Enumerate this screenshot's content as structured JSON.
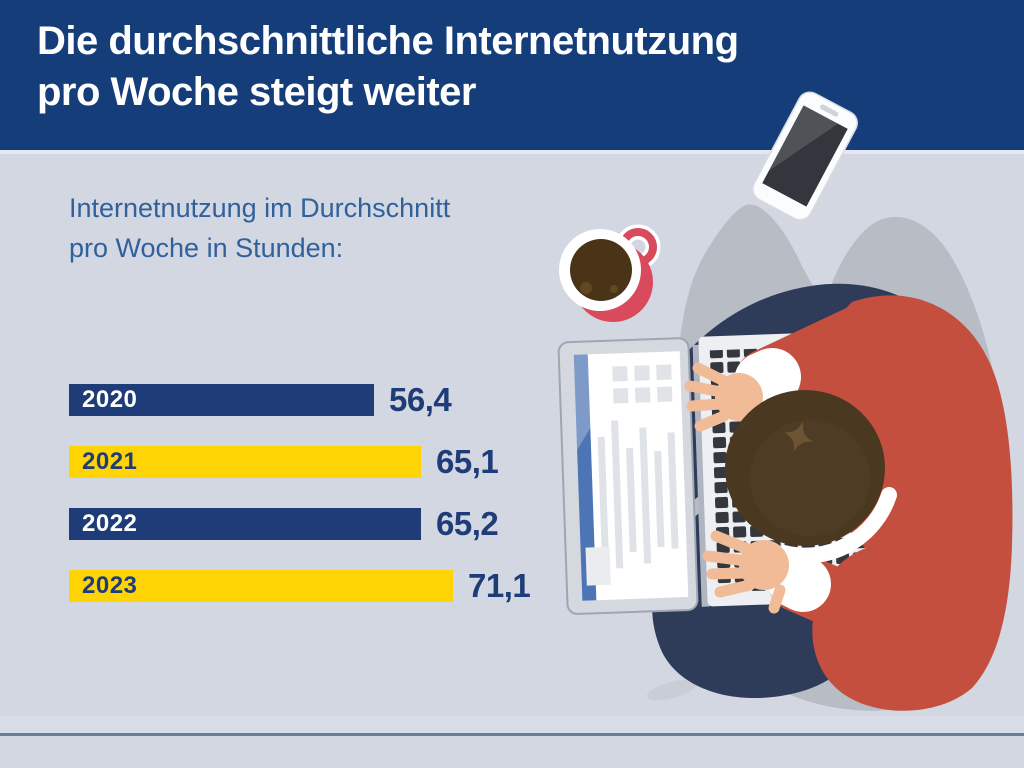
{
  "header": {
    "title_line1": "Die durchschnittliche Internetnutzung",
    "title_line2": "pro Woche steigt weiter"
  },
  "chart": {
    "subtitle_line1": "Internetnutzung im Durchschnitt",
    "subtitle_line2": "pro Woche in Stunden:"
  },
  "chart_data": {
    "type": "bar",
    "orientation": "horizontal",
    "title": "Internetnutzung im Durchschnitt pro Woche in Stunden:",
    "categories": [
      "2020",
      "2021",
      "2022",
      "2023"
    ],
    "values": [
      56.4,
      65.1,
      65.2,
      71.1
    ],
    "value_labels": [
      "56,4",
      "65,1",
      "65,2",
      "71,1"
    ],
    "bar_colors": [
      "#1e3c78",
      "#ffd405",
      "#1e3c78",
      "#ffd405"
    ],
    "label_colors": [
      "#ffffff",
      "#1e3c78",
      "#ffffff",
      "#1e3c78"
    ],
    "xlim": [
      0,
      80
    ],
    "grid": false,
    "legend": false
  },
  "palette": {
    "header_bg": "#143d7a",
    "body_bg": "#d2d7e2",
    "subtitle_text": "#30619c",
    "value_text": "#1e3c78",
    "bar_blue": "#1e3c78",
    "bar_yellow": "#ffd405",
    "footer_divider": "#6b7d9c",
    "sweater_red": "#c44f3f",
    "jeans_navy": "#2e3b59",
    "hair_brown": "#4b3820",
    "skin": "#f2bb97",
    "cup_red": "#d94a5c",
    "coffee_brown": "#4a3418",
    "shadow_gray": "#b8bcc4",
    "laptop_screen_accent": "#4d74b4"
  },
  "illustration": {
    "elements": [
      "person-at-laptop",
      "laptop",
      "smartphone",
      "coffee-cup"
    ]
  }
}
